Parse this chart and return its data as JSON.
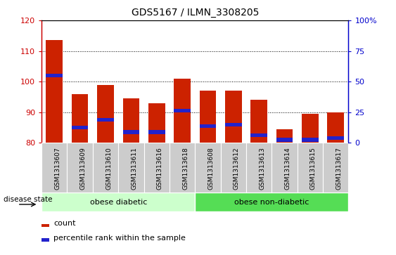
{
  "title": "GDS5167 / ILMN_3308205",
  "samples": [
    "GSM1313607",
    "GSM1313609",
    "GSM1313610",
    "GSM1313611",
    "GSM1313616",
    "GSM1313618",
    "GSM1313608",
    "GSM1313612",
    "GSM1313613",
    "GSM1313614",
    "GSM1313615",
    "GSM1313617"
  ],
  "bar_values": [
    113.5,
    96.0,
    99.0,
    94.5,
    93.0,
    101.0,
    97.0,
    97.0,
    94.0,
    84.5,
    89.5,
    90.0
  ],
  "blue_values": [
    102.0,
    85.0,
    87.5,
    83.5,
    83.5,
    90.5,
    85.5,
    86.0,
    82.5,
    81.0,
    81.0,
    81.5
  ],
  "ymin": 80,
  "ymax": 120,
  "yticks": [
    80,
    90,
    100,
    110,
    120
  ],
  "bar_color": "#cc2200",
  "blue_color": "#2222cc",
  "bar_bg_color": "#cccccc",
  "group1_label": "obese diabetic",
  "group2_label": "obese non-diabetic",
  "group1_count": 6,
  "group2_count": 6,
  "disease_state_label": "disease state",
  "legend_count_label": "count",
  "legend_pct_label": "percentile rank within the sample",
  "group1_color": "#ccffcc",
  "group2_color": "#55dd55",
  "left_axis_color": "#cc0000",
  "right_axis_color": "#0000cc",
  "bar_width": 0.65
}
